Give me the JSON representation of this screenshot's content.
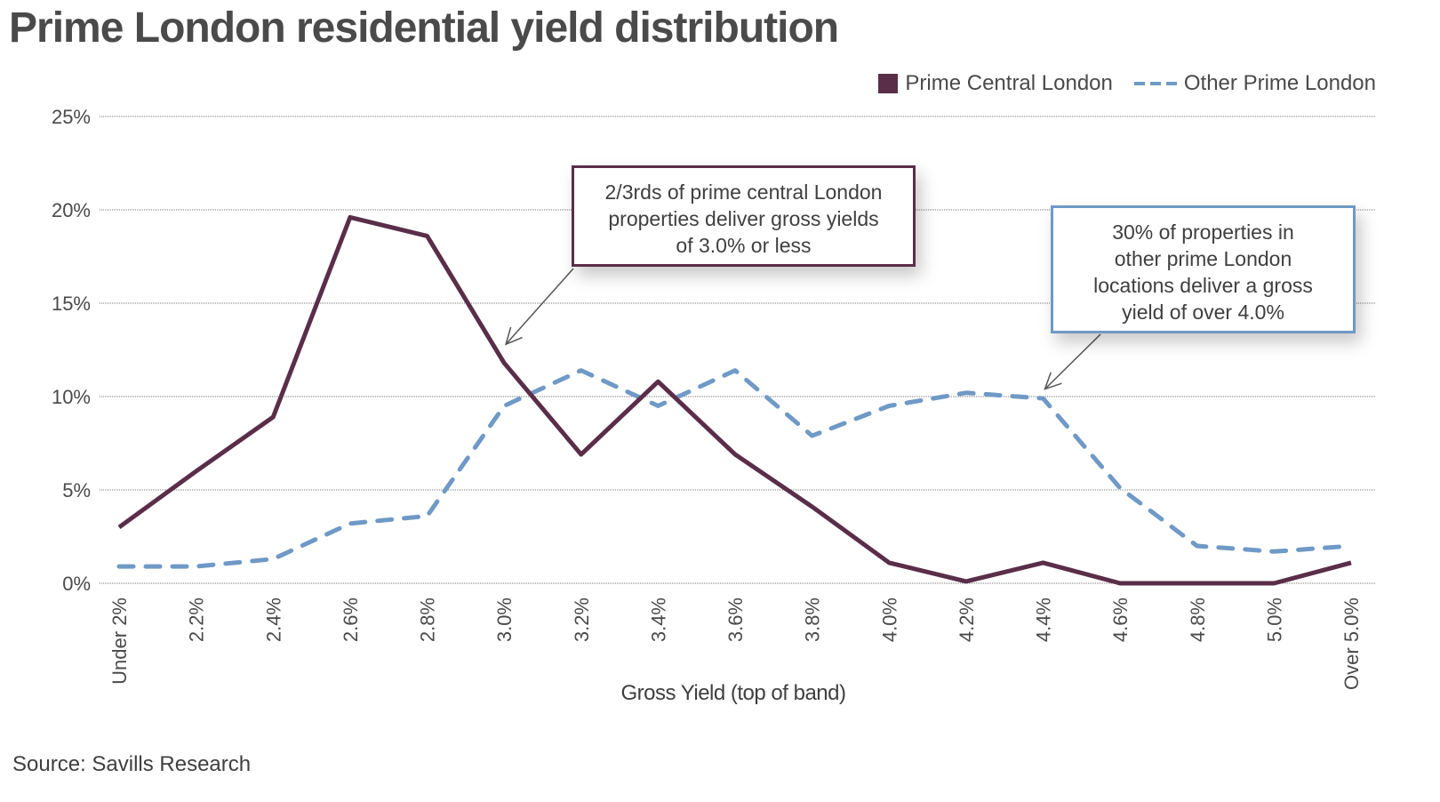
{
  "chart_data": {
    "type": "line",
    "title": "Prime London residential yield distribution",
    "xlabel": "Gross Yield (top of band)",
    "ylabel": "",
    "ylim": [
      0,
      25
    ],
    "yticks": [
      "0%",
      "5%",
      "10%",
      "15%",
      "20%",
      "25%"
    ],
    "ytick_values": [
      0,
      5,
      10,
      15,
      20,
      25
    ],
    "grid": true,
    "legend_position": "top-right",
    "categories": [
      "Under 2%",
      "2.2%",
      "2.4%",
      "2.6%",
      "2.8%",
      "3.0%",
      "3.2%",
      "3.4%",
      "3.6%",
      "3.8%",
      "4.0%",
      "4.2%",
      "4.4%",
      "4.6%",
      "4.8%",
      "5.0%",
      "Over 5.0%"
    ],
    "series": [
      {
        "name": "Prime Central London",
        "style": "solid",
        "color": "#5a2e48",
        "values": [
          3.0,
          6.0,
          8.9,
          19.6,
          18.6,
          11.8,
          6.9,
          10.8,
          6.9,
          4.1,
          1.1,
          0.1,
          1.1,
          0.0,
          0.0,
          0.0,
          1.1
        ]
      },
      {
        "name": "Other Prime London",
        "style": "dashed",
        "color": "#6f99c6",
        "values": [
          0.9,
          0.9,
          1.3,
          3.2,
          3.6,
          9.5,
          11.4,
          9.5,
          11.4,
          7.9,
          9.5,
          10.2,
          9.9,
          5.1,
          2.0,
          1.7,
          2.0
        ]
      }
    ],
    "annotations": [
      {
        "id": "pcl",
        "text_lines": [
          "2/3rds of prime central London",
          "properties deliver gross yields",
          "of 3.0% or less"
        ],
        "points_to": {
          "category": "3.0%",
          "value": 12.8
        }
      },
      {
        "id": "opl",
        "text_lines": [
          "30% of properties in",
          "other prime London",
          "locations deliver a gross",
          "yield of over 4.0%"
        ],
        "points_to": {
          "category": "4.4%",
          "value": 10.4
        }
      }
    ]
  },
  "header": {
    "title": "Prime London residential yield distribution"
  },
  "legend": {
    "items": [
      {
        "label": "Prime Central London",
        "marker": "solid-square",
        "color": "#5a2e48"
      },
      {
        "label": "Other Prime London",
        "marker": "dashed-line",
        "color": "#6f99c6"
      }
    ]
  },
  "footer": {
    "source": "Source: Savills Research"
  }
}
